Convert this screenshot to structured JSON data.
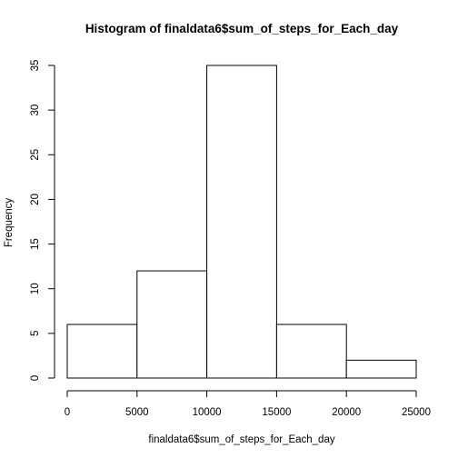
{
  "chart_data": {
    "type": "bar",
    "title": "Histogram of finaldata6$sum_of_steps_for_Each_day",
    "xlabel": "finaldata6$sum_of_steps_for_Each_day",
    "ylabel": "Frequency",
    "bins": [
      {
        "start": 0,
        "end": 5000,
        "count": 6
      },
      {
        "start": 5000,
        "end": 10000,
        "count": 12
      },
      {
        "start": 10000,
        "end": 15000,
        "count": 35
      },
      {
        "start": 15000,
        "end": 20000,
        "count": 6
      },
      {
        "start": 20000,
        "end": 25000,
        "count": 2
      }
    ],
    "xlim": [
      0,
      25000
    ],
    "ylim": [
      0,
      35
    ],
    "xticks": [
      0,
      5000,
      10000,
      15000,
      20000,
      25000
    ],
    "yticks": [
      0,
      5,
      10,
      15,
      20,
      25,
      30,
      35
    ],
    "grid": false,
    "colors": {
      "bar_fill": "#ffffff",
      "bar_stroke": "#000000"
    }
  }
}
